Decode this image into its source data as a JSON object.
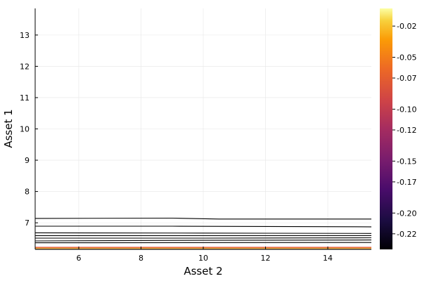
{
  "chart_data": {
    "type": "contour",
    "title": "",
    "xlabel": "Asset 2",
    "ylabel": "Asset 1",
    "xlim": [
      4.6,
      15.4
    ],
    "ylim": [
      6.15,
      13.85
    ],
    "x_ticks": [
      6,
      8,
      10,
      12,
      14
    ],
    "y_ticks": [
      7,
      8,
      9,
      10,
      11,
      12,
      13
    ],
    "grid": true,
    "colorbar": {
      "colormap": "inferno",
      "range": [
        -0.235,
        -0.003
      ],
      "ticks": [
        -0.02,
        -0.05,
        -0.07,
        -0.1,
        -0.12,
        -0.15,
        -0.17,
        -0.2,
        -0.22
      ],
      "tick_labels": [
        "-0.02",
        "-0.05",
        "-0.07",
        "-0.10",
        "-0.12",
        "-0.15",
        "-0.17",
        "-0.20",
        "-0.22"
      ]
    },
    "contour_lines": [
      {
        "x": [
          4.6,
          9.0,
          10.5,
          15.4
        ],
        "y": [
          7.14,
          7.15,
          7.12,
          7.12
        ]
      },
      {
        "x": [
          4.6,
          9.0,
          15.4
        ],
        "y": [
          6.89,
          6.89,
          6.87
        ]
      },
      {
        "x": [
          4.6,
          10.0,
          15.4
        ],
        "y": [
          6.68,
          6.67,
          6.66
        ]
      },
      {
        "x": [
          4.6,
          10.0,
          15.4
        ],
        "y": [
          6.59,
          6.59,
          6.59
        ]
      },
      {
        "x": [
          4.6,
          10.0,
          15.4
        ],
        "y": [
          6.51,
          6.51,
          6.52
        ]
      },
      {
        "x": [
          4.6,
          10.0,
          15.4
        ],
        "y": [
          6.42,
          6.44,
          6.45
        ]
      },
      {
        "x": [
          4.6,
          15.4
        ],
        "y": [
          6.36,
          6.37
        ]
      }
    ],
    "color_bands": [
      {
        "y": [
          6.15,
          6.17
        ],
        "color": "#1f0c48"
      },
      {
        "y": [
          6.17,
          6.19
        ],
        "color": "#fbd04a"
      },
      {
        "y": [
          6.19,
          6.21
        ],
        "color": "#f57d15"
      },
      {
        "y": [
          6.21,
          6.23
        ],
        "color": "#d44842"
      }
    ]
  }
}
